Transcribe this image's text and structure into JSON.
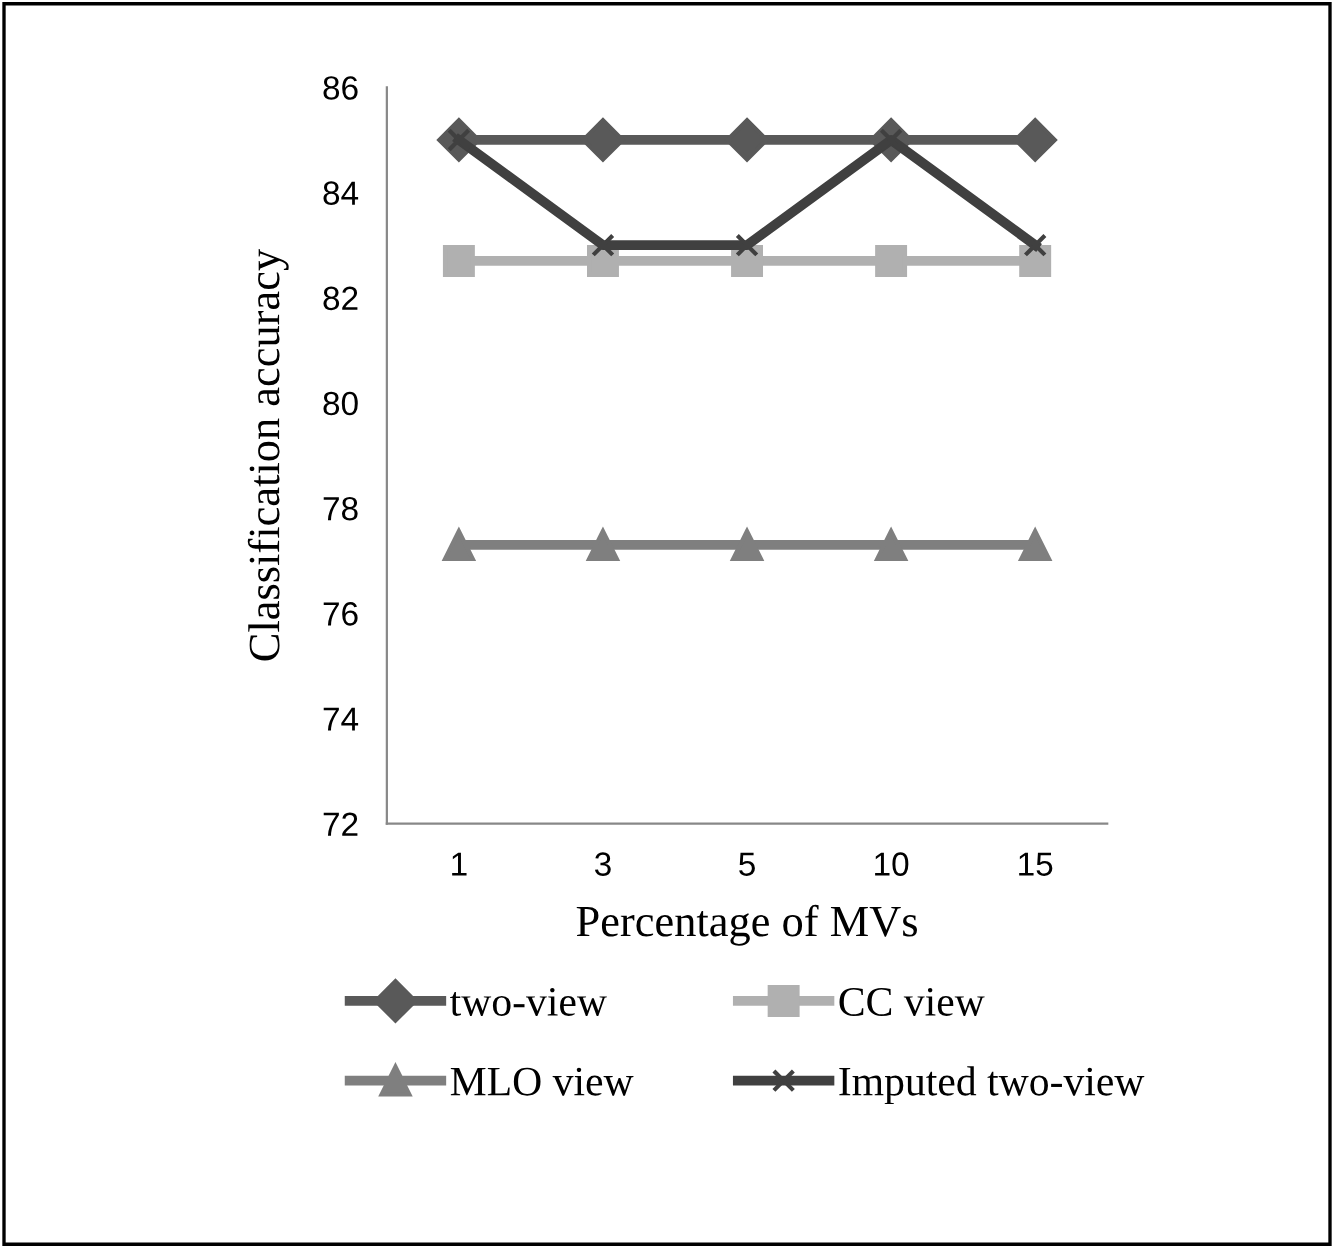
{
  "chart_data": {
    "type": "line",
    "xlabel": "Percentage of MVs",
    "ylabel": "Classification accuracy",
    "categories": [
      "1",
      "3",
      "5",
      "10",
      "15"
    ],
    "series": [
      {
        "name": "two-view",
        "color": "#595959",
        "marker": "diamond",
        "values": [
          85,
          85,
          85,
          85,
          85
        ]
      },
      {
        "name": "CC view",
        "color": "#b0b0b0",
        "marker": "square",
        "values": [
          82.7,
          82.7,
          82.7,
          82.7,
          82.7
        ]
      },
      {
        "name": "MLO view",
        "color": "#7f7f7f",
        "marker": "triangle",
        "values": [
          77.3,
          77.3,
          77.3,
          77.3,
          77.3
        ]
      },
      {
        "name": "Imputed two-view",
        "color": "#404040",
        "marker": "cross",
        "values": [
          85,
          83,
          83,
          85,
          83
        ]
      }
    ],
    "ylim": [
      72,
      86
    ],
    "yticks": [
      72,
      74,
      76,
      78,
      80,
      82,
      84,
      86
    ],
    "grid": false,
    "legend": "bottom"
  }
}
